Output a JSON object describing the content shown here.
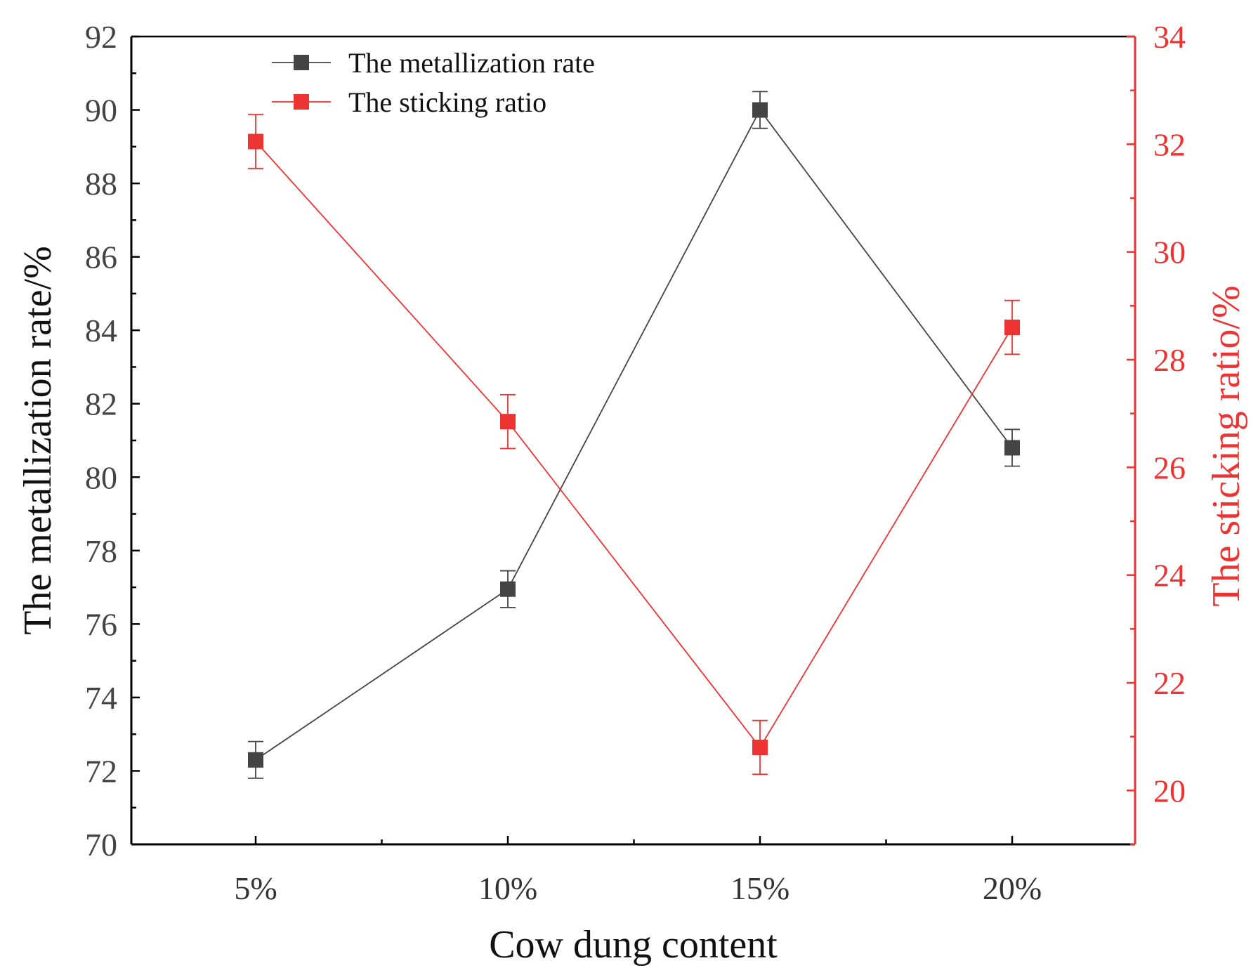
{
  "chart_data": {
    "type": "line",
    "categories": [
      "5%",
      "10%",
      "15%",
      "20%"
    ],
    "xlabel": "Cow dung content",
    "y_left": {
      "label": "The metallization rate/%",
      "lim": [
        70,
        92
      ],
      "ticks": [
        70,
        72,
        74,
        76,
        78,
        80,
        82,
        84,
        86,
        88,
        90,
        92
      ],
      "color": "#333333"
    },
    "y_right": {
      "label": "The sticking ratio/%",
      "lim": [
        19,
        34
      ],
      "ticks": [
        20,
        22,
        24,
        26,
        28,
        30,
        32,
        34
      ],
      "color": "#ee3333"
    },
    "series": [
      {
        "name": "The metallization rate",
        "axis": "left",
        "color": "#444444",
        "values": [
          72.3,
          76.95,
          90.0,
          80.8
        ],
        "errors": [
          0.5,
          0.5,
          0.5,
          0.5
        ]
      },
      {
        "name": "The sticking ratio",
        "axis": "right",
        "color": "#ee3333",
        "values": [
          32.05,
          26.85,
          20.8,
          28.6
        ],
        "errors": [
          0.5,
          0.5,
          0.5,
          0.5
        ]
      }
    ],
    "legend_position": "top-left",
    "grid": false
  }
}
